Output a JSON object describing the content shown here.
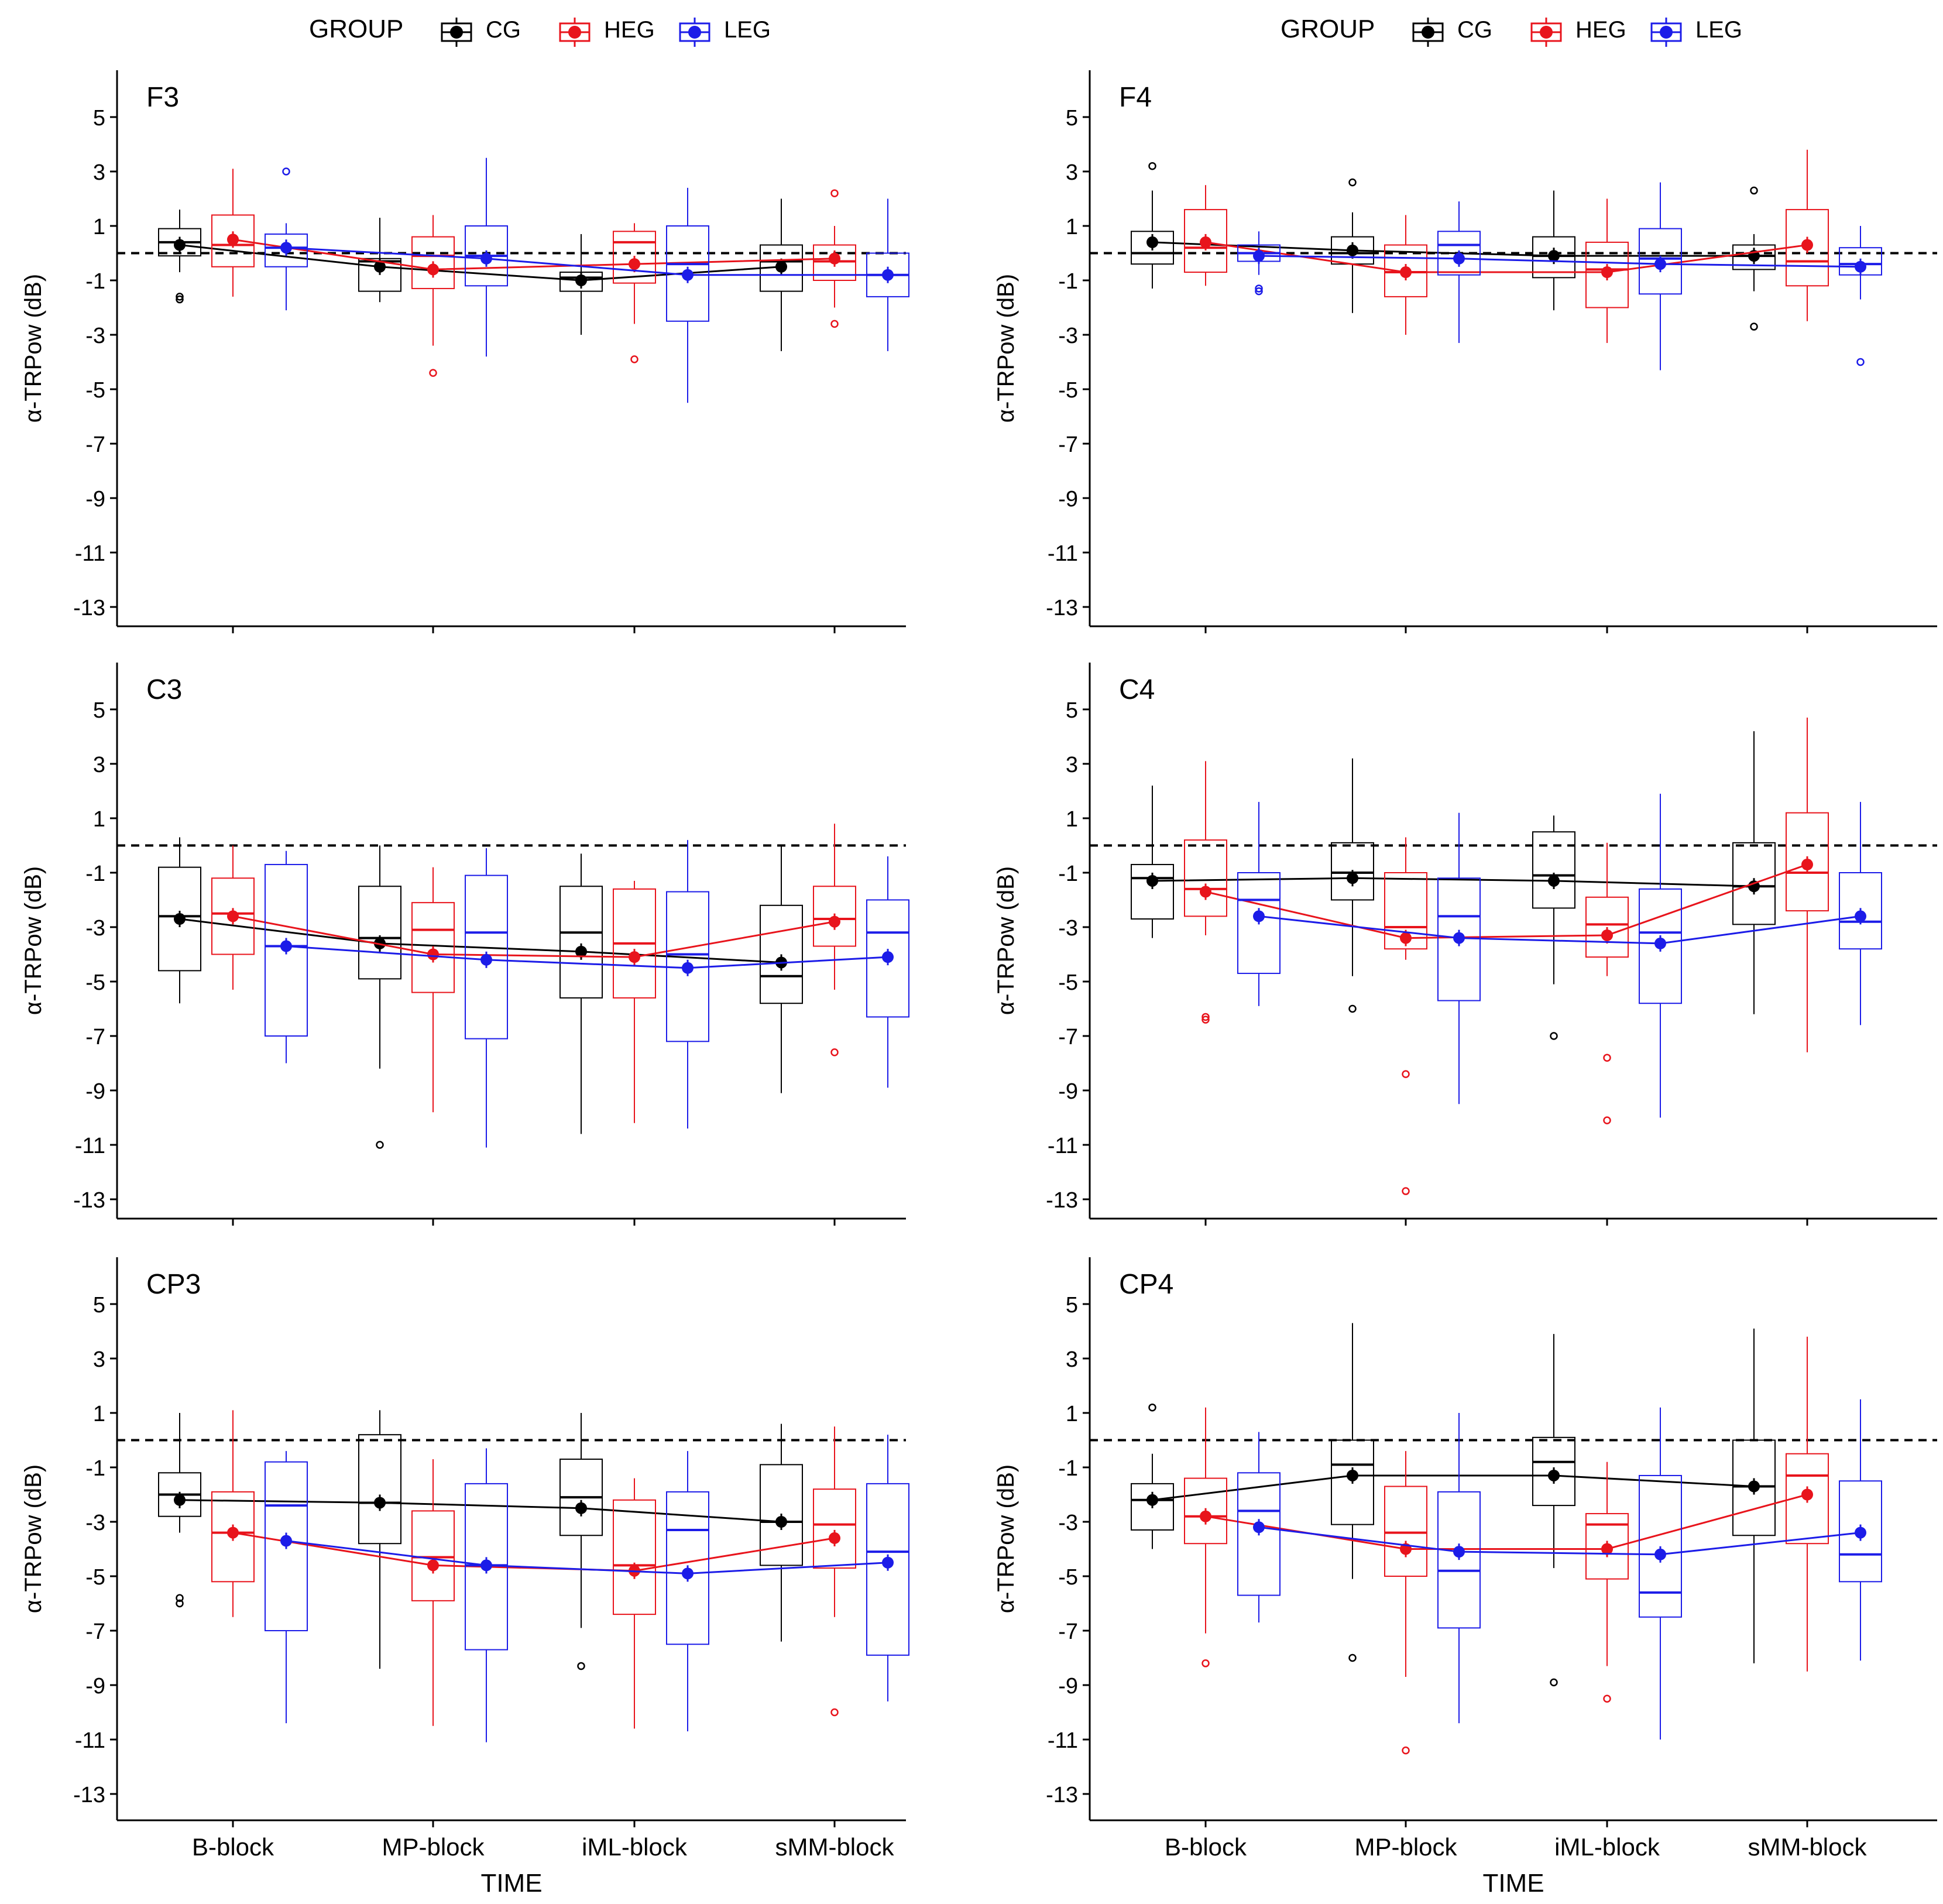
{
  "chart_data": {
    "type": "boxplot",
    "legend_title": "GROUP",
    "groups": [
      "CG",
      "HEG",
      "LEG"
    ],
    "colors": {
      "CG": "#000000",
      "HEG": "#e8141c",
      "LEG": "#1c1ce8"
    },
    "xlabel": "TIME",
    "ylabel": "α-TRPow (dB)",
    "categories": [
      "B-block",
      "MP-block",
      "iML-block",
      "sMM-block"
    ],
    "y_ticks": [
      5,
      3,
      1,
      -1,
      -3,
      -5,
      -7,
      -9,
      -11,
      -13
    ],
    "ylim": [
      -14.2,
      6.0
    ],
    "reference_line": 0,
    "panels": [
      {
        "title": "F3",
        "stats": {
          "CG": [
            {
              "mean": 0.3,
              "median": 0.4,
              "q1": -0.1,
              "q3": 0.9,
              "lo": -0.7,
              "hi": 1.6,
              "outliers": [
                -1.6,
                -1.7
              ]
            },
            {
              "mean": -0.5,
              "median": -0.3,
              "q1": -1.4,
              "q3": -0.2,
              "lo": -1.8,
              "hi": 1.3,
              "outliers": []
            },
            {
              "mean": -1.0,
              "median": -0.9,
              "q1": -1.4,
              "q3": -0.7,
              "lo": -3.0,
              "hi": 0.7,
              "outliers": []
            },
            {
              "mean": -0.5,
              "median": -0.3,
              "q1": -1.4,
              "q3": 0.3,
              "lo": -3.6,
              "hi": 2.0,
              "outliers": []
            }
          ],
          "HEG": [
            {
              "mean": 0.5,
              "median": 0.3,
              "q1": -0.5,
              "q3": 1.4,
              "lo": -1.6,
              "hi": 3.1,
              "outliers": []
            },
            {
              "mean": -0.6,
              "median": -0.1,
              "q1": -1.3,
              "q3": 0.6,
              "lo": -3.4,
              "hi": 1.4,
              "outliers": [
                -4.4
              ]
            },
            {
              "mean": -0.4,
              "median": 0.4,
              "q1": -1.1,
              "q3": 0.8,
              "lo": -2.6,
              "hi": 1.1,
              "outliers": [
                -3.9
              ]
            },
            {
              "mean": -0.2,
              "median": -0.3,
              "q1": -1.0,
              "q3": 0.3,
              "lo": -2.0,
              "hi": 1.0,
              "outliers": [
                2.2,
                -2.6
              ]
            }
          ],
          "LEG": [
            {
              "mean": 0.2,
              "median": 0.2,
              "q1": -0.5,
              "q3": 0.7,
              "lo": -2.1,
              "hi": 1.1,
              "outliers": [
                3.0
              ]
            },
            {
              "mean": -0.2,
              "median": -0.1,
              "q1": -1.2,
              "q3": 1.0,
              "lo": -3.8,
              "hi": 3.5,
              "outliers": []
            },
            {
              "mean": -0.8,
              "median": -0.4,
              "q1": -2.5,
              "q3": 1.0,
              "lo": -5.5,
              "hi": 2.4,
              "outliers": []
            },
            {
              "mean": -0.8,
              "median": -0.8,
              "q1": -1.6,
              "q3": 0.0,
              "lo": -3.6,
              "hi": 2.0,
              "outliers": []
            }
          ]
        }
      },
      {
        "title": "F4",
        "stats": {
          "CG": [
            {
              "mean": 0.4,
              "median": 0.0,
              "q1": -0.4,
              "q3": 0.8,
              "lo": -1.3,
              "hi": 2.3,
              "outliers": [
                3.2
              ]
            },
            {
              "mean": 0.1,
              "median": 0.0,
              "q1": -0.4,
              "q3": 0.6,
              "lo": -2.2,
              "hi": 1.5,
              "outliers": [
                2.6
              ]
            },
            {
              "mean": -0.1,
              "median": -0.1,
              "q1": -0.9,
              "q3": 0.6,
              "lo": -2.1,
              "hi": 2.3,
              "outliers": []
            },
            {
              "mean": -0.1,
              "median": -0.1,
              "q1": -0.6,
              "q3": 0.3,
              "lo": -1.4,
              "hi": 0.7,
              "outliers": [
                2.3,
                -2.7
              ]
            }
          ],
          "HEG": [
            {
              "mean": 0.4,
              "median": 0.2,
              "q1": -0.7,
              "q3": 1.6,
              "lo": -1.2,
              "hi": 2.5,
              "outliers": []
            },
            {
              "mean": -0.7,
              "median": -0.7,
              "q1": -1.6,
              "q3": 0.3,
              "lo": -3.0,
              "hi": 1.4,
              "outliers": []
            },
            {
              "mean": -0.7,
              "median": -0.6,
              "q1": -2.0,
              "q3": 0.4,
              "lo": -3.3,
              "hi": 2.0,
              "outliers": []
            },
            {
              "mean": 0.3,
              "median": -0.3,
              "q1": -1.2,
              "q3": 1.6,
              "lo": -2.5,
              "hi": 3.8,
              "outliers": []
            }
          ],
          "LEG": [
            {
              "mean": -0.1,
              "median": 0.0,
              "q1": -0.3,
              "q3": 0.3,
              "lo": -0.8,
              "hi": 0.8,
              "outliers": [
                -1.3,
                -1.4
              ]
            },
            {
              "mean": -0.2,
              "median": 0.3,
              "q1": -0.8,
              "q3": 0.8,
              "lo": -3.3,
              "hi": 1.9,
              "outliers": []
            },
            {
              "mean": -0.4,
              "median": -0.2,
              "q1": -1.5,
              "q3": 0.9,
              "lo": -4.3,
              "hi": 2.6,
              "outliers": []
            },
            {
              "mean": -0.5,
              "median": -0.4,
              "q1": -0.8,
              "q3": 0.2,
              "lo": -1.7,
              "hi": 1.0,
              "outliers": [
                -4.0
              ]
            }
          ]
        }
      },
      {
        "title": "C3",
        "stats": {
          "CG": [
            {
              "mean": -2.7,
              "median": -2.6,
              "q1": -4.6,
              "q3": -0.8,
              "lo": -5.8,
              "hi": 0.3,
              "outliers": []
            },
            {
              "mean": -3.6,
              "median": -3.4,
              "q1": -4.9,
              "q3": -1.5,
              "lo": -8.2,
              "hi": 0.0,
              "outliers": [
                -11.0
              ]
            },
            {
              "mean": -3.9,
              "median": -3.2,
              "q1": -5.6,
              "q3": -1.5,
              "lo": -10.6,
              "hi": -0.3,
              "outliers": []
            },
            {
              "mean": -4.3,
              "median": -4.8,
              "q1": -5.8,
              "q3": -2.2,
              "lo": -9.1,
              "hi": 0.0,
              "outliers": []
            }
          ],
          "HEG": [
            {
              "mean": -2.6,
              "median": -2.5,
              "q1": -4.0,
              "q3": -1.2,
              "lo": -5.3,
              "hi": 0.0,
              "outliers": []
            },
            {
              "mean": -4.0,
              "median": -3.1,
              "q1": -5.4,
              "q3": -2.1,
              "lo": -9.8,
              "hi": -0.8,
              "outliers": []
            },
            {
              "mean": -4.1,
              "median": -3.6,
              "q1": -5.6,
              "q3": -1.6,
              "lo": -10.2,
              "hi": -1.3,
              "outliers": []
            },
            {
              "mean": -2.8,
              "median": -2.7,
              "q1": -3.7,
              "q3": -1.5,
              "lo": -5.3,
              "hi": 0.8,
              "outliers": [
                -7.6
              ]
            }
          ],
          "LEG": [
            {
              "mean": -3.7,
              "median": -3.7,
              "q1": -7.0,
              "q3": -0.7,
              "lo": -8.0,
              "hi": -0.2,
              "outliers": []
            },
            {
              "mean": -4.2,
              "median": -3.2,
              "q1": -7.1,
              "q3": -1.1,
              "lo": -11.1,
              "hi": -0.1,
              "outliers": []
            },
            {
              "mean": -4.5,
              "median": -4.0,
              "q1": -7.2,
              "q3": -1.7,
              "lo": -10.4,
              "hi": 0.2,
              "outliers": []
            },
            {
              "mean": -4.1,
              "median": -3.2,
              "q1": -6.3,
              "q3": -2.0,
              "lo": -8.9,
              "hi": -0.4,
              "outliers": []
            }
          ]
        }
      },
      {
        "title": "C4",
        "stats": {
          "CG": [
            {
              "mean": -1.3,
              "median": -1.2,
              "q1": -2.7,
              "q3": -0.7,
              "lo": -3.4,
              "hi": 2.2,
              "outliers": []
            },
            {
              "mean": -1.2,
              "median": -1.0,
              "q1": -2.0,
              "q3": 0.1,
              "lo": -4.8,
              "hi": 3.2,
              "outliers": [
                -6.0
              ]
            },
            {
              "mean": -1.3,
              "median": -1.1,
              "q1": -2.3,
              "q3": 0.5,
              "lo": -5.1,
              "hi": 1.1,
              "outliers": [
                -7.0
              ]
            },
            {
              "mean": -1.5,
              "median": -1.5,
              "q1": -2.9,
              "q3": 0.1,
              "lo": -6.2,
              "hi": 4.2,
              "outliers": []
            }
          ],
          "HEG": [
            {
              "mean": -1.7,
              "median": -1.6,
              "q1": -2.6,
              "q3": 0.2,
              "lo": -3.3,
              "hi": 3.1,
              "outliers": [
                -6.3,
                -6.4
              ]
            },
            {
              "mean": -3.4,
              "median": -3.0,
              "q1": -3.8,
              "q3": -1.0,
              "lo": -4.2,
              "hi": 0.3,
              "outliers": [
                -8.4,
                -12.7
              ]
            },
            {
              "mean": -3.3,
              "median": -2.9,
              "q1": -4.1,
              "q3": -1.9,
              "lo": -4.8,
              "hi": 0.1,
              "outliers": [
                -7.8,
                -10.1
              ]
            },
            {
              "mean": -0.7,
              "median": -1.0,
              "q1": -2.4,
              "q3": 1.2,
              "lo": -7.6,
              "hi": 4.7,
              "outliers": []
            }
          ],
          "LEG": [
            {
              "mean": -2.6,
              "median": -2.0,
              "q1": -4.7,
              "q3": -1.0,
              "lo": -5.9,
              "hi": 1.6,
              "outliers": []
            },
            {
              "mean": -3.4,
              "median": -2.6,
              "q1": -5.7,
              "q3": -1.2,
              "lo": -9.5,
              "hi": 1.2,
              "outliers": []
            },
            {
              "mean": -3.6,
              "median": -3.2,
              "q1": -5.8,
              "q3": -1.6,
              "lo": -10.0,
              "hi": 1.9,
              "outliers": []
            },
            {
              "mean": -2.6,
              "median": -2.8,
              "q1": -3.8,
              "q3": -1.0,
              "lo": -6.6,
              "hi": 1.6,
              "outliers": []
            }
          ]
        }
      },
      {
        "title": "CP3",
        "stats": {
          "CG": [
            {
              "mean": -2.2,
              "median": -2.0,
              "q1": -2.8,
              "q3": -1.2,
              "lo": -3.4,
              "hi": 1.0,
              "outliers": [
                -5.8,
                -6.0
              ]
            },
            {
              "mean": -2.3,
              "median": -2.3,
              "q1": -3.8,
              "q3": 0.2,
              "lo": -8.4,
              "hi": 1.1,
              "outliers": []
            },
            {
              "mean": -2.5,
              "median": -2.1,
              "q1": -3.5,
              "q3": -0.7,
              "lo": -6.9,
              "hi": 1.0,
              "outliers": [
                -8.3
              ]
            },
            {
              "mean": -3.0,
              "median": -3.0,
              "q1": -4.6,
              "q3": -0.9,
              "lo": -7.4,
              "hi": 0.6,
              "outliers": []
            }
          ],
          "HEG": [
            {
              "mean": -3.4,
              "median": -3.4,
              "q1": -5.2,
              "q3": -1.9,
              "lo": -6.5,
              "hi": 1.1,
              "outliers": []
            },
            {
              "mean": -4.6,
              "median": -4.3,
              "q1": -5.9,
              "q3": -2.6,
              "lo": -10.5,
              "hi": -0.7,
              "outliers": []
            },
            {
              "mean": -4.8,
              "median": -4.6,
              "q1": -6.4,
              "q3": -2.2,
              "lo": -10.6,
              "hi": -1.4,
              "outliers": []
            },
            {
              "mean": -3.6,
              "median": -3.1,
              "q1": -4.7,
              "q3": -1.8,
              "lo": -6.5,
              "hi": 0.5,
              "outliers": [
                -10.0
              ]
            }
          ],
          "LEG": [
            {
              "mean": -3.7,
              "median": -2.4,
              "q1": -7.0,
              "q3": -0.8,
              "lo": -10.4,
              "hi": -0.4,
              "outliers": []
            },
            {
              "mean": -4.6,
              "median": -4.6,
              "q1": -7.7,
              "q3": -1.6,
              "lo": -11.1,
              "hi": -0.3,
              "outliers": []
            },
            {
              "mean": -4.9,
              "median": -3.3,
              "q1": -7.5,
              "q3": -1.9,
              "lo": -10.7,
              "hi": -0.4,
              "outliers": []
            },
            {
              "mean": -4.5,
              "median": -4.1,
              "q1": -7.9,
              "q3": -1.6,
              "lo": -9.6,
              "hi": 0.2,
              "outliers": []
            }
          ]
        }
      },
      {
        "title": "CP4",
        "stats": {
          "CG": [
            {
              "mean": -2.2,
              "median": -2.2,
              "q1": -3.3,
              "q3": -1.6,
              "lo": -4.0,
              "hi": -0.5,
              "outliers": [
                1.2
              ]
            },
            {
              "mean": -1.3,
              "median": -0.9,
              "q1": -3.1,
              "q3": 0.0,
              "lo": -5.1,
              "hi": 4.3,
              "outliers": [
                -8.0
              ]
            },
            {
              "mean": -1.3,
              "median": -0.8,
              "q1": -2.4,
              "q3": 0.1,
              "lo": -4.7,
              "hi": 3.9,
              "outliers": [
                -8.9
              ]
            },
            {
              "mean": -1.7,
              "median": -1.7,
              "q1": -3.5,
              "q3": 0.0,
              "lo": -8.2,
              "hi": 4.1,
              "outliers": []
            }
          ],
          "HEG": [
            {
              "mean": -2.8,
              "median": -2.8,
              "q1": -3.8,
              "q3": -1.4,
              "lo": -7.1,
              "hi": 1.2,
              "outliers": [
                -8.2
              ]
            },
            {
              "mean": -4.0,
              "median": -3.4,
              "q1": -5.0,
              "q3": -1.7,
              "lo": -8.7,
              "hi": -0.4,
              "outliers": [
                -11.4
              ]
            },
            {
              "mean": -4.0,
              "median": -3.1,
              "q1": -5.1,
              "q3": -2.7,
              "lo": -8.3,
              "hi": -0.8,
              "outliers": [
                -9.5
              ]
            },
            {
              "mean": -2.0,
              "median": -1.3,
              "q1": -3.8,
              "q3": -0.5,
              "lo": -8.5,
              "hi": 3.8,
              "outliers": []
            }
          ],
          "LEG": [
            {
              "mean": -3.2,
              "median": -2.6,
              "q1": -5.7,
              "q3": -1.2,
              "lo": -6.7,
              "hi": 0.3,
              "outliers": []
            },
            {
              "mean": -4.1,
              "median": -4.8,
              "q1": -6.9,
              "q3": -1.9,
              "lo": -10.4,
              "hi": 1.0,
              "outliers": []
            },
            {
              "mean": -4.2,
              "median": -5.6,
              "q1": -6.5,
              "q3": -1.3,
              "lo": -11.0,
              "hi": 1.2,
              "outliers": []
            },
            {
              "mean": -3.4,
              "median": -4.2,
              "q1": -5.2,
              "q3": -1.5,
              "lo": -8.1,
              "hi": 1.5,
              "outliers": []
            }
          ]
        }
      }
    ]
  }
}
